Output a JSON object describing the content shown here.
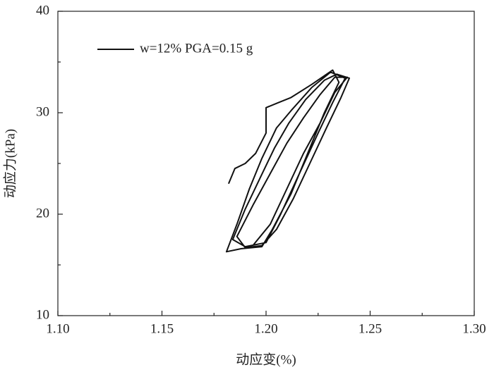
{
  "chart_data": {
    "type": "line",
    "xlabel": "动应变(%)",
    "ylabel": "动应力(kPa)",
    "x": [
      1.182,
      1.185,
      1.19,
      1.195,
      1.2,
      1.2,
      1.206,
      1.212,
      1.222,
      1.232,
      1.235,
      1.228,
      1.22,
      1.212,
      1.203,
      1.198,
      1.188,
      1.181,
      1.186,
      1.192,
      1.198,
      1.205,
      1.212,
      1.222,
      1.231,
      1.238,
      1.232,
      1.225,
      1.216,
      1.207,
      1.2,
      1.19,
      1.184,
      1.19,
      1.197,
      1.204,
      1.211,
      1.219,
      1.228,
      1.234,
      1.24,
      1.236,
      1.229,
      1.221,
      1.213,
      1.205,
      1.198,
      1.19,
      1.186,
      1.194,
      1.202,
      1.21,
      1.218,
      1.226,
      1.233,
      1.239,
      1.233,
      1.226,
      1.218,
      1.21,
      1.202,
      1.194
    ],
    "series": [
      {
        "name": "w=12% PGA=0.15 g",
        "color": "#111111",
        "values": [
          23,
          24.5,
          25,
          26,
          28,
          30.5,
          31,
          31.5,
          32.8,
          34.2,
          33,
          30,
          26,
          22,
          18.5,
          16.8,
          16.6,
          16.3,
          19,
          22.5,
          25.5,
          28.5,
          30.2,
          32.5,
          34,
          33.4,
          31,
          28,
          24,
          20,
          17.2,
          16.8,
          17.5,
          20.5,
          23.5,
          26.5,
          29,
          31.3,
          33.2,
          33.8,
          33.4,
          31.5,
          28.5,
          25,
          21.5,
          18.5,
          16.9,
          16.7,
          17.8,
          21,
          24,
          27,
          29.5,
          31.8,
          33.5,
          33.5,
          32,
          29,
          26,
          22.5,
          19,
          17
        ]
      }
    ],
    "xlim": [
      1.1,
      1.3
    ],
    "xticks": [
      {
        "value": 1.1,
        "label": "1.10"
      },
      1.15,
      {
        "value": 1.2,
        "label": "1.20"
      },
      1.25,
      {
        "value": 1.3,
        "label": "1.30"
      }
    ],
    "xminorticks": [
      1.125,
      1.175,
      1.225,
      1.275
    ],
    "ylim": [
      10,
      40
    ],
    "yticks": [
      10,
      20,
      30,
      40
    ],
    "yminorticks": [
      15,
      25,
      35
    ],
    "legend": "upper left",
    "grid": false
  }
}
